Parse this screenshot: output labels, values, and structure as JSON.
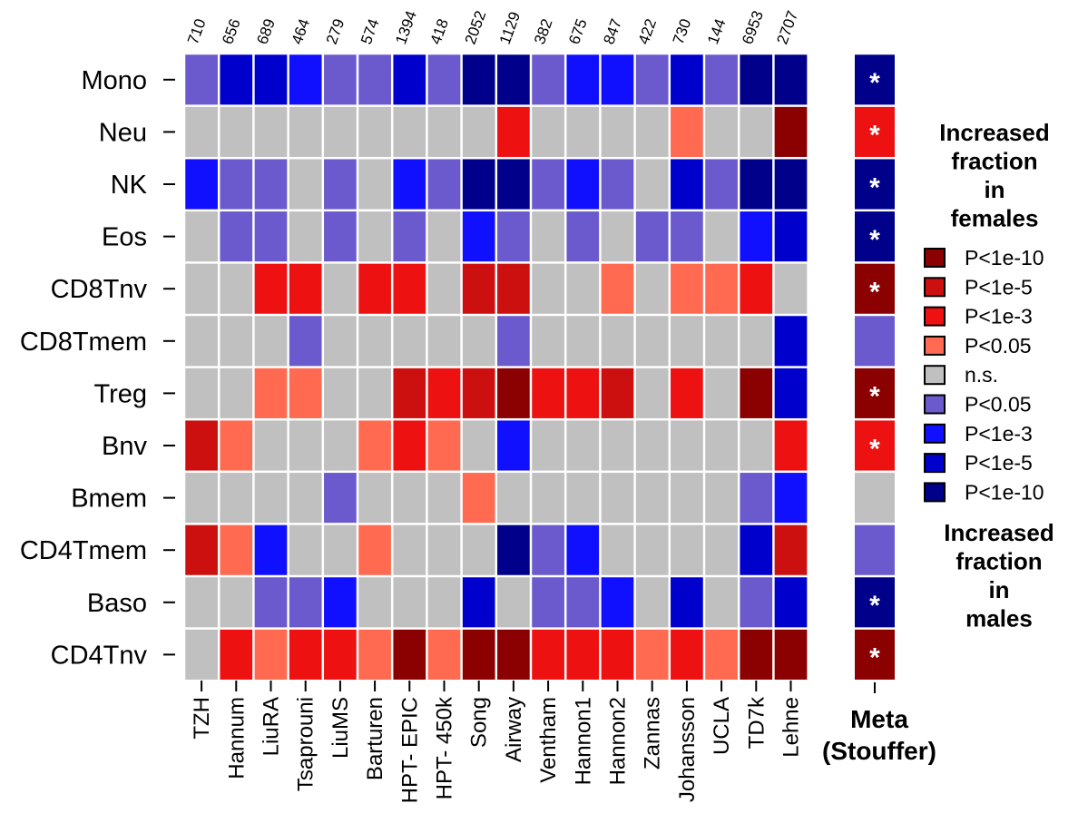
{
  "chart_data": {
    "type": "heatmap",
    "rows": [
      "Mono",
      "Neu",
      "NK",
      "Eos",
      "CD8Tnv",
      "CD8Tmem",
      "Treg",
      "Bnv",
      "Bmem",
      "CD4Tmem",
      "Baso",
      "CD4Tnv"
    ],
    "columns": [
      "TZH",
      "Hannum",
      "LiuRA",
      "Tsaprouni",
      "LiuMS",
      "Barturen",
      "HPT- EPIC",
      "HPT- 450k",
      "Song",
      "Airway",
      "Ventham",
      "Hannon1",
      "Hannon2",
      "Zannas",
      "Johansson",
      "UCLA",
      "TD7k",
      "Lehne"
    ],
    "sample_sizes": [
      "710",
      "656",
      "689",
      "464",
      "279",
      "574",
      "1394",
      "418",
      "2052",
      "1129",
      "382",
      "675",
      "847",
      "422",
      "730",
      "144",
      "6953",
      "2707"
    ],
    "category_codes": {
      "F4": "P<1e-10 (females)",
      "F3": "P<1e-5 (females)",
      "F2": "P<1e-3 (females)",
      "F1": "P<0.05 (females)",
      "NS": "n.s.",
      "M1": "P<0.05 (males)",
      "M2": "P<1e-3 (males)",
      "M3": "P<1e-5 (males)",
      "M4": "P<1e-10 (males)"
    },
    "values": [
      [
        "M1",
        "M3",
        "M3",
        "M2",
        "M1",
        "M1",
        "M3",
        "M1",
        "M4",
        "M4",
        "M1",
        "M2",
        "M2",
        "M1",
        "M3",
        "M1",
        "M4",
        "M4"
      ],
      [
        "NS",
        "NS",
        "NS",
        "NS",
        "NS",
        "NS",
        "NS",
        "NS",
        "NS",
        "F2",
        "NS",
        "NS",
        "NS",
        "NS",
        "F1",
        "NS",
        "NS",
        "F4"
      ],
      [
        "M2",
        "M1",
        "M1",
        "NS",
        "M1",
        "NS",
        "M2",
        "M1",
        "M4",
        "M4",
        "M1",
        "M2",
        "M1",
        "NS",
        "M3",
        "M1",
        "M4",
        "M4"
      ],
      [
        "NS",
        "M1",
        "M1",
        "NS",
        "M1",
        "NS",
        "M1",
        "NS",
        "M2",
        "M1",
        "NS",
        "M1",
        "NS",
        "M1",
        "M1",
        "NS",
        "M2",
        "M3"
      ],
      [
        "NS",
        "NS",
        "F2",
        "F2",
        "NS",
        "F2",
        "F2",
        "NS",
        "F3",
        "F3",
        "NS",
        "NS",
        "F1",
        "NS",
        "F1",
        "F1",
        "F2",
        "NS"
      ],
      [
        "NS",
        "NS",
        "NS",
        "M1",
        "NS",
        "NS",
        "NS",
        "NS",
        "NS",
        "M1",
        "NS",
        "NS",
        "NS",
        "NS",
        "NS",
        "NS",
        "NS",
        "M3"
      ],
      [
        "NS",
        "NS",
        "F1",
        "F1",
        "NS",
        "NS",
        "F3",
        "F2",
        "F3",
        "F4",
        "F2",
        "F2",
        "F3",
        "NS",
        "F2",
        "NS",
        "F4",
        "M3"
      ],
      [
        "F3",
        "F1",
        "NS",
        "NS",
        "NS",
        "F1",
        "F2",
        "F1",
        "NS",
        "M2",
        "NS",
        "NS",
        "NS",
        "NS",
        "NS",
        "NS",
        "NS",
        "F2"
      ],
      [
        "NS",
        "NS",
        "NS",
        "NS",
        "M1",
        "NS",
        "NS",
        "NS",
        "F1",
        "NS",
        "NS",
        "NS",
        "NS",
        "NS",
        "NS",
        "NS",
        "M1",
        "M2"
      ],
      [
        "F3",
        "F1",
        "M2",
        "NS",
        "NS",
        "F1",
        "NS",
        "NS",
        "NS",
        "M4",
        "M1",
        "M2",
        "NS",
        "NS",
        "NS",
        "NS",
        "M3",
        "F3"
      ],
      [
        "NS",
        "NS",
        "M1",
        "M1",
        "M2",
        "NS",
        "NS",
        "NS",
        "M3",
        "NS",
        "M1",
        "M1",
        "M2",
        "NS",
        "M3",
        "NS",
        "M1",
        "M3"
      ],
      [
        "NS",
        "F2",
        "F1",
        "F2",
        "F2",
        "F1",
        "F4",
        "F1",
        "F4",
        "F4",
        "F2",
        "F2",
        "F2",
        "F1",
        "F2",
        "F1",
        "F4",
        "F4"
      ]
    ],
    "meta": {
      "label_line1": "Meta",
      "label_line2": "(Stouffer)",
      "values": [
        "M4",
        "F2",
        "M4",
        "M4",
        "F4",
        "M1",
        "F4",
        "F2",
        "NS",
        "M1",
        "M4",
        "F4"
      ],
      "significant": [
        true,
        true,
        true,
        true,
        true,
        false,
        true,
        true,
        false,
        false,
        true,
        true
      ],
      "star_symbol": "*"
    },
    "legend": {
      "title_top": [
        "Increased",
        "fraction",
        "in",
        "females"
      ],
      "title_bottom": [
        "Increased",
        "fraction",
        "in",
        "males"
      ],
      "items": [
        {
          "code": "F4",
          "label": "P<1e-10"
        },
        {
          "code": "F3",
          "label": "P<1e-5"
        },
        {
          "code": "F2",
          "label": "P<1e-3"
        },
        {
          "code": "F1",
          "label": "P<0.05"
        },
        {
          "code": "NS",
          "label": "n.s."
        },
        {
          "code": "M1",
          "label": "P<0.05"
        },
        {
          "code": "M2",
          "label": "P<1e-3"
        },
        {
          "code": "M3",
          "label": "P<1e-5"
        },
        {
          "code": "M4",
          "label": "P<1e-10"
        }
      ]
    },
    "colors": {
      "F4": "#8b0000",
      "F3": "#cc1010",
      "F2": "#ee1111",
      "F1": "#ff6a50",
      "NS": "#c0c0c0",
      "M1": "#6a5acd",
      "M2": "#1010ff",
      "M3": "#0000cd",
      "M4": "#00008b"
    }
  }
}
